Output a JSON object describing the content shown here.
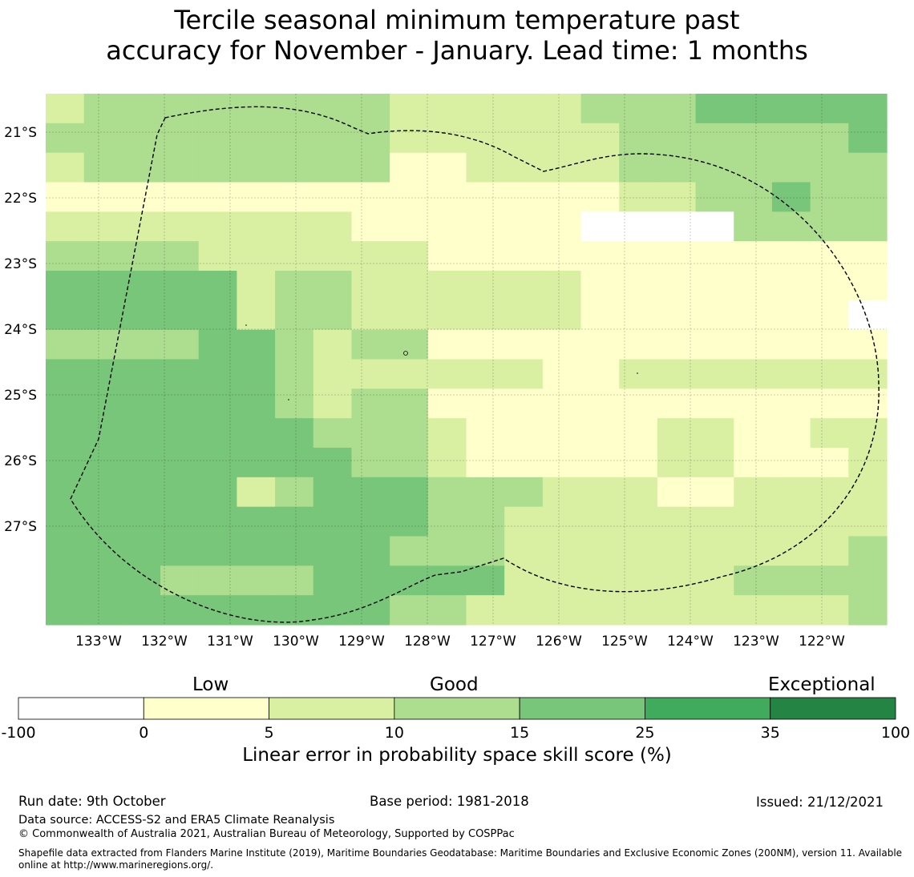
{
  "title_line1": "Tercile seasonal minimum temperature past",
  "title_line2": "accuracy for November - January. Lead time: 1 months",
  "map": {
    "lon_labels": [
      "133°W",
      "132°W",
      "131°W",
      "130°W",
      "129°W",
      "128°W",
      "127°W",
      "126°W",
      "125°W",
      "124°W",
      "123°W",
      "122°W"
    ],
    "lat_labels": [
      "21°S",
      "22°S",
      "23°S",
      "24°S",
      "25°S",
      "26°S",
      "27°S"
    ],
    "palette": [
      "#ffffff",
      "#ffffcc",
      "#d9f0a3",
      "#addd8e",
      "#78c679",
      "#41ab5d",
      "#238443"
    ],
    "grid": [
      "2333333332222233344444",
      "3333333332222223333334",
      "2333333331122223333333",
      "1111111111111112233433",
      "2222222211111100003333",
      "3333222222111111111111",
      "4444423322222211111111",
      "4444423322222211111110",
      "3333443233111111111111",
      "4444443222222112222222",
      "4444443233111111111111",
      "4444444333211111221122",
      "4444444433211111221112",
      "4444423444333222112222",
      "4444444444332222222222",
      "4444444443332222222223",
      "4443333444442222223333",
      "4444444443322222222223"
    ]
  },
  "colorbar": {
    "top_labels": [
      "Low",
      "Good",
      "Exceptional"
    ],
    "ticks": [
      "-100",
      "0",
      "5",
      "10",
      "15",
      "25",
      "35",
      "100"
    ],
    "colors": [
      "#ffffff",
      "#ffffcc",
      "#d9f0a3",
      "#addd8e",
      "#78c679",
      "#41ab5d",
      "#238443"
    ],
    "xlabel": "Linear error in probability space skill score (%)"
  },
  "footer": {
    "run_date": "Run date: 9th October",
    "base_period": "Base period: 1981-2018",
    "issued": "Issued: 21/12/2021",
    "data_source": "Data source: ACCESS-S2 and ERA5 Climate Reanalysis",
    "copyright": "© Commonwealth of Australia 2021, Australian Bureau of Meteorology, Supported by COSPPac",
    "shapefile": "Shapefile data extracted from Flanders Marine Institute (2019), Maritime Boundaries Geodatabase: Maritime Boundaries and Exclusive Economic Zones (200NM), version 11. Available online at http://www.marineregions.org/."
  }
}
